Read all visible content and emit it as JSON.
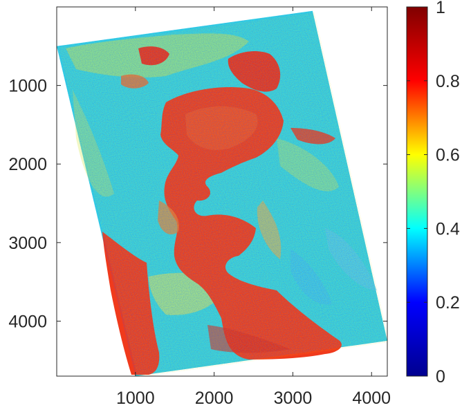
{
  "chart_data": {
    "type": "heatmap",
    "title": "",
    "xlabel": "",
    "ylabel": "",
    "x_ticks": [
      1000,
      2000,
      3000,
      4000
    ],
    "y_ticks": [
      1000,
      2000,
      3000,
      4000
    ],
    "xlim": [
      0,
      4200
    ],
    "ylim": [
      0,
      4700
    ],
    "y_reversed": true,
    "grid": false,
    "colormap": "jet",
    "colorbar": {
      "ticks": [
        0,
        0.2,
        0.4,
        0.6,
        0.8,
        1
      ],
      "range": [
        0,
        1
      ],
      "position": "right"
    },
    "colors": {
      "background": "#ffffff",
      "axis": "#262626",
      "jet": [
        "#00008f",
        "#0000ff",
        "#00ffff",
        "#ffff00",
        "#ff0000",
        "#800000"
      ],
      "dominant_low": "#35d6e0",
      "dominant_high": "#f03a1c"
    },
    "image_footprint_data_coords": [
      [
        0,
        500
      ],
      [
        3250,
        50
      ],
      [
        4200,
        4250
      ],
      [
        1000,
        4700
      ]
    ],
    "regions": [
      {
        "label": "central high-value zone",
        "approx_value": 0.85
      },
      {
        "label": "surrounding land",
        "approx_value": 0.45
      },
      {
        "label": "lower-left high-value strip",
        "approx_value": 0.85
      }
    ]
  }
}
